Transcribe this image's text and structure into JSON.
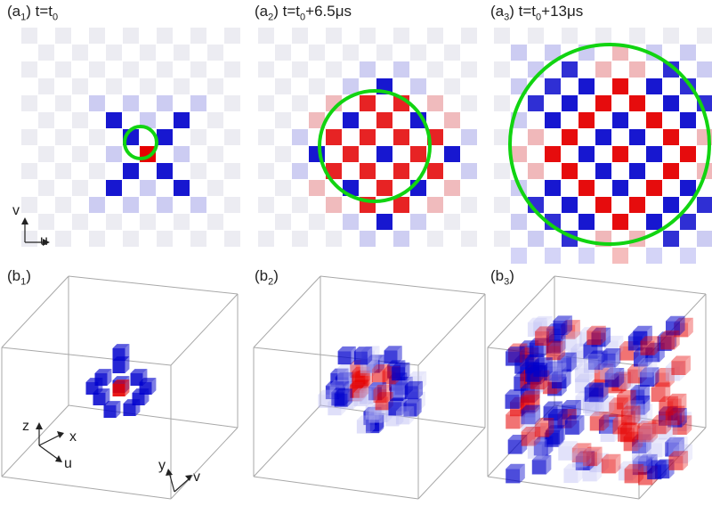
{
  "colors": {
    "red": "#e60000",
    "blue": "#0000cc",
    "light_blue": "#b7b7f2",
    "light_red": "#f2a7a7",
    "checker": "#ececf2",
    "green": "#11d411",
    "frame": "#a8a8a8"
  },
  "top_row": [
    {
      "label_main": "(a",
      "label_sub": "1",
      "label_rest": ") t=t",
      "label_sub2": "0",
      "label_tail": ""
    },
    {
      "label_main": "(a",
      "label_sub": "2",
      "label_rest": ") t=t",
      "label_sub2": "0",
      "label_tail": "+6.5μs"
    },
    {
      "label_main": "(a",
      "label_sub": "3",
      "label_rest": ") t=t",
      "label_sub2": "0",
      "label_tail": "+13μs"
    }
  ],
  "bottom_row": [
    {
      "label_main": "(b",
      "label_sub": "1",
      "label_rest": ")"
    },
    {
      "label_main": "(b",
      "label_sub": "2",
      "label_rest": ")"
    },
    {
      "label_main": "(b",
      "label_sub": "3",
      "label_rest": ")"
    }
  ],
  "axes_2d": {
    "vertical": "v",
    "horizontal": "u"
  },
  "axes_3d": {
    "z": "z",
    "x": "x",
    "u": "u",
    "y": "y",
    "v": "v"
  }
}
